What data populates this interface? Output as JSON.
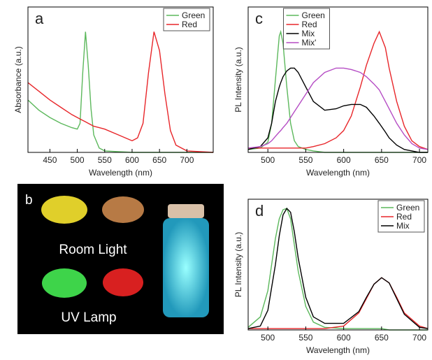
{
  "chart_data": [
    {
      "type": "line",
      "panel_label": "a",
      "xlabel": "Wavelength (nm)",
      "ylabel": "Absorbance (a.u.)",
      "xlim": [
        410,
        748
      ],
      "xticks": [
        450,
        500,
        550,
        600,
        650,
        700
      ],
      "ylim": [
        0,
        1
      ],
      "legend": "upper right",
      "x": [
        410,
        430,
        450,
        470,
        490,
        500,
        505,
        510,
        515,
        520,
        525,
        530,
        540,
        550,
        575,
        600,
        610,
        620,
        630,
        640,
        650,
        660,
        670,
        680,
        700,
        748
      ],
      "series": [
        {
          "name": "Green",
          "color": "#5cb85c",
          "values": [
            0.36,
            0.29,
            0.24,
            0.2,
            0.17,
            0.16,
            0.2,
            0.55,
            0.83,
            0.6,
            0.3,
            0.12,
            0.03,
            0.01,
            0.005,
            0,
            0,
            0,
            0,
            0,
            0,
            0,
            0,
            0,
            0,
            0
          ]
        },
        {
          "name": "Red",
          "color": "#e8262a",
          "values": [
            0.48,
            0.42,
            0.36,
            0.31,
            0.26,
            0.24,
            0.23,
            0.22,
            0.21,
            0.2,
            0.19,
            0.18,
            0.17,
            0.16,
            0.12,
            0.08,
            0.1,
            0.2,
            0.55,
            0.83,
            0.7,
            0.4,
            0.15,
            0.05,
            0.01,
            0
          ]
        }
      ]
    },
    {
      "type": "line",
      "panel_label": "c",
      "xlabel": "Wavelength (nm)",
      "ylabel": "PL Intensity (a.u.)",
      "xlim": [
        474,
        711
      ],
      "xticks": [
        500,
        550,
        600,
        650,
        700
      ],
      "ylim": [
        0,
        1
      ],
      "legend": "upper center",
      "x": [
        474,
        490,
        500,
        505,
        510,
        515,
        517,
        520,
        525,
        530,
        535,
        540,
        550,
        560,
        575,
        590,
        600,
        610,
        622,
        630,
        640,
        647,
        655,
        660,
        670,
        680,
        690,
        700,
        711
      ],
      "series": [
        {
          "name": "Green",
          "color": "#5cb85c",
          "values": [
            0.02,
            0.03,
            0.07,
            0.2,
            0.5,
            0.8,
            0.83,
            0.75,
            0.45,
            0.2,
            0.08,
            0.04,
            0.02,
            0.01,
            0,
            0,
            0,
            0,
            0,
            0,
            0,
            0,
            0,
            0,
            0,
            0,
            0,
            0,
            0
          ]
        },
        {
          "name": "Red",
          "color": "#e8262a",
          "values": [
            0.03,
            0.03,
            0.03,
            0.03,
            0.03,
            0.03,
            0.03,
            0.03,
            0.03,
            0.03,
            0.03,
            0.03,
            0.03,
            0.04,
            0.06,
            0.1,
            0.15,
            0.25,
            0.45,
            0.6,
            0.75,
            0.83,
            0.72,
            0.58,
            0.35,
            0.18,
            0.08,
            0.04,
            0.02
          ]
        },
        {
          "name": "Mix",
          "color": "#000000",
          "values": [
            0.02,
            0.04,
            0.1,
            0.2,
            0.35,
            0.45,
            0.48,
            0.52,
            0.56,
            0.58,
            0.58,
            0.55,
            0.45,
            0.35,
            0.29,
            0.3,
            0.32,
            0.33,
            0.33,
            0.31,
            0.25,
            0.2,
            0.14,
            0.1,
            0.05,
            0.02,
            0.01,
            0,
            0
          ]
        },
        {
          "name": "Mix'",
          "color": "#b54cc4",
          "values": [
            0.03,
            0.04,
            0.06,
            0.08,
            0.11,
            0.14,
            0.15,
            0.17,
            0.2,
            0.24,
            0.28,
            0.32,
            0.4,
            0.48,
            0.55,
            0.58,
            0.58,
            0.57,
            0.55,
            0.52,
            0.47,
            0.43,
            0.35,
            0.3,
            0.2,
            0.12,
            0.06,
            0.03,
            0.02
          ]
        }
      ]
    },
    {
      "type": "line",
      "panel_label": "d",
      "xlabel": "Wavelength (nm)",
      "ylabel": "PL Intensity (a.u.)",
      "xlim": [
        474,
        711
      ],
      "xticks": [
        500,
        550,
        600,
        650,
        700
      ],
      "ylim": [
        0,
        1
      ],
      "legend": "upper right",
      "x": [
        474,
        490,
        500,
        510,
        515,
        520,
        525,
        530,
        535,
        540,
        550,
        560,
        575,
        600,
        620,
        630,
        640,
        650,
        660,
        670,
        680,
        700,
        711
      ],
      "series": [
        {
          "name": "Green",
          "color": "#5cb85c",
          "values": [
            0.02,
            0.1,
            0.3,
            0.7,
            0.85,
            0.92,
            0.93,
            0.85,
            0.65,
            0.45,
            0.18,
            0.06,
            0.02,
            0.01,
            0.01,
            0.01,
            0.01,
            0.01,
            0,
            0,
            0,
            0,
            0
          ]
        },
        {
          "name": "Red",
          "color": "#e8262a",
          "values": [
            0.01,
            0.01,
            0.01,
            0.01,
            0.01,
            0.01,
            0.01,
            0.01,
            0.01,
            0.01,
            0.01,
            0.01,
            0.01,
            0.03,
            0.13,
            0.24,
            0.35,
            0.4,
            0.36,
            0.25,
            0.13,
            0.03,
            0.01
          ]
        },
        {
          "name": "Mix",
          "color": "#000000",
          "values": [
            0.01,
            0.03,
            0.15,
            0.5,
            0.72,
            0.88,
            0.93,
            0.9,
            0.75,
            0.55,
            0.25,
            0.1,
            0.05,
            0.05,
            0.14,
            0.25,
            0.35,
            0.4,
            0.36,
            0.24,
            0.12,
            0.02,
            0.01
          ]
        }
      ]
    }
  ],
  "photo": {
    "panel_label": "b",
    "captions": [
      "Room Light",
      "UV Lamp"
    ]
  }
}
